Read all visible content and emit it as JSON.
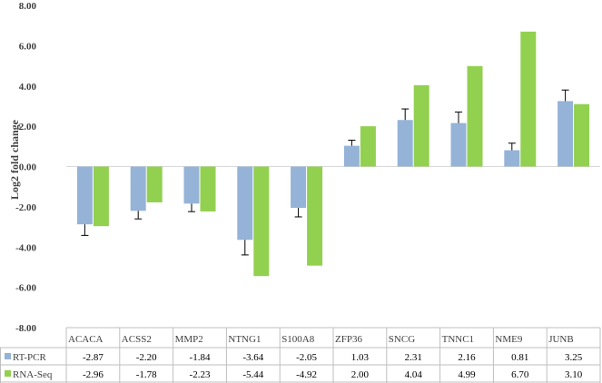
{
  "chart_data": {
    "type": "bar",
    "ylabel": "Log2 fold change",
    "ylim": [
      -8,
      8
    ],
    "yticks": [
      "8.00",
      "6.00",
      "4.00",
      "2.00",
      "0.00",
      "-2.00",
      "-4.00",
      "-6.00",
      "-8.00"
    ],
    "categories": [
      "ACACA",
      "ACSS2",
      "MMP2",
      "NTNG1",
      "S100A8",
      "ZFP36",
      "SNCG",
      "TNNC1",
      "NME9",
      "JUNB"
    ],
    "series": [
      {
        "name": "RT-PCR",
        "color": "#95b3d7",
        "values": [
          -2.87,
          -2.2,
          -1.84,
          -3.64,
          -2.05,
          1.03,
          2.31,
          2.16,
          0.81,
          3.25
        ],
        "error": [
          0.55,
          0.4,
          0.4,
          0.75,
          0.45,
          0.28,
          0.55,
          0.55,
          0.35,
          0.55
        ],
        "value_labels": [
          "-2.87",
          "-2.20",
          "-1.84",
          "-3.64",
          "-2.05",
          "1.03",
          "2.31",
          "2.16",
          "0.81",
          "3.25"
        ]
      },
      {
        "name": "RNA-Seq",
        "color": "#92d050",
        "values": [
          -2.96,
          -1.78,
          -2.23,
          -5.44,
          -4.92,
          2.0,
          4.04,
          4.99,
          6.7,
          3.1
        ],
        "value_labels": [
          "-2.96",
          "-1.78",
          "-2.23",
          "-5.44",
          "-4.92",
          "2.00",
          "4.04",
          "4.99",
          "6.70",
          "3.10"
        ]
      }
    ],
    "legend": "data-table-below",
    "grid": false
  }
}
